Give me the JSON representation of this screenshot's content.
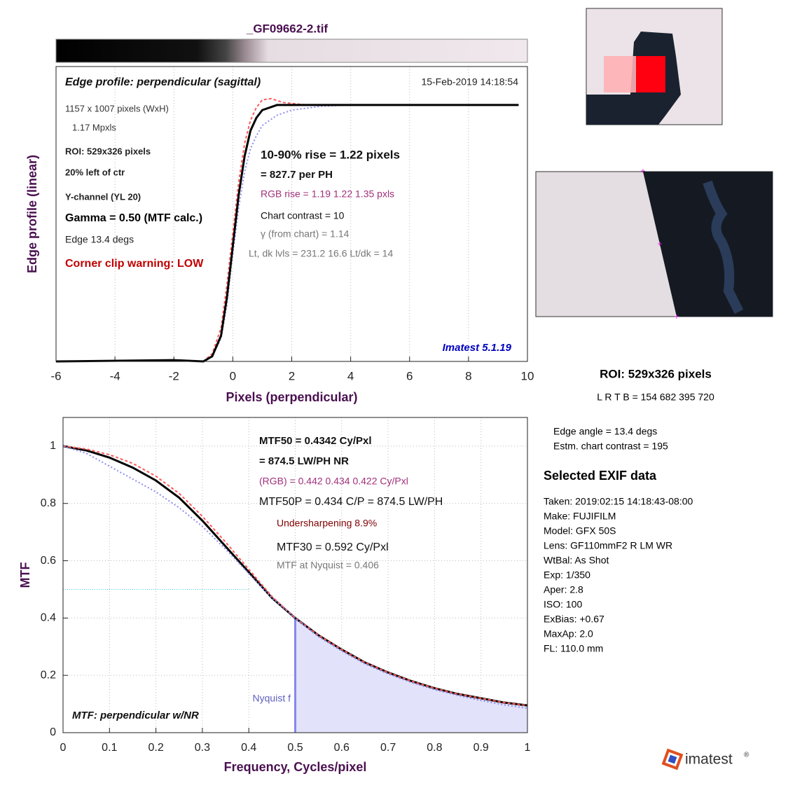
{
  "file_title": "_GF09662-2.tif",
  "chart_data": [
    {
      "type": "line",
      "title": "Edge profile: perpendicular (sagittal)",
      "timestamp": "15-Feb-2019 14:18:54",
      "xlabel": "Pixels (perpendicular)",
      "ylabel": "Edge profile (linear)",
      "xlim": [
        -6,
        10
      ],
      "xticks": [
        -6,
        -4,
        -2,
        0,
        2,
        4,
        6,
        8,
        10
      ],
      "ylim": [
        0,
        1.15
      ],
      "grid": true,
      "annotations": [
        "1157 x 1007 pixels (WxH)",
        "1.17 Mpxls",
        "ROI:  529x326 pixels",
        "20% left of ctr",
        "Y-channel  (YL 20)",
        "Gamma = 0.50 (MTF calc.)",
        "Edge   13.4 degs",
        "Corner clip warning: LOW",
        "10-90% rise = 1.22 pixels",
        "=  827.7 per PH",
        "RGB rise =   1.19    1.22    1.35 pxls",
        "Chart contrast = 10",
        "γ (from chart) =  1.14",
        "Lt, dk lvls = 231.2  16.6  Lt/dk = 14",
        "Imatest 5.1.19"
      ],
      "series": [
        {
          "color": "#ff5a5a",
          "style": "dashed",
          "x": [
            -6,
            -2,
            -1,
            -0.7,
            -0.4,
            -0.2,
            0,
            0.2,
            0.4,
            0.6,
            0.8,
            1.0,
            1.3,
            1.7,
            2.5,
            4,
            9.7
          ],
          "values": [
            0,
            0.005,
            0,
            0.03,
            0.13,
            0.3,
            0.5,
            0.7,
            0.85,
            0.94,
            0.99,
            1.02,
            1.025,
            1.01,
            1.0,
            1.0,
            1.0
          ]
        },
        {
          "color": "#8c8cf0",
          "style": "dotted",
          "x": [
            -6,
            -2,
            -1,
            -0.7,
            -0.4,
            -0.2,
            0,
            0.2,
            0.4,
            0.6,
            0.8,
            1.0,
            1.5,
            2.0,
            3.0,
            4,
            9.7
          ],
          "values": [
            0,
            0.005,
            0,
            0.02,
            0.09,
            0.22,
            0.42,
            0.6,
            0.74,
            0.83,
            0.88,
            0.92,
            0.96,
            0.98,
            0.995,
            1.0,
            1.0
          ]
        },
        {
          "color": "#000000",
          "style": "solid",
          "x": [
            -6,
            -2,
            -1,
            -0.7,
            -0.4,
            -0.2,
            0,
            0.2,
            0.4,
            0.6,
            0.8,
            1.0,
            1.5,
            2,
            4,
            9.7
          ],
          "values": [
            0,
            0.005,
            0,
            0.02,
            0.1,
            0.25,
            0.45,
            0.65,
            0.8,
            0.9,
            0.95,
            0.98,
            1.0,
            1.0,
            1.0,
            1.0
          ]
        }
      ]
    },
    {
      "type": "line",
      "xlabel": "Frequency, Cycles/pixel",
      "ylabel": "MTF",
      "xlim": [
        0,
        1
      ],
      "xticks": [
        0,
        0.1,
        0.2,
        0.3,
        0.4,
        0.5,
        0.6,
        0.7,
        0.8,
        0.9,
        1
      ],
      "ylim": [
        0,
        1.1
      ],
      "yticks": [
        0,
        0.2,
        0.4,
        0.6,
        0.8,
        1
      ],
      "grid": true,
      "nyquist": 0.5,
      "reference_level": 0.5,
      "annotations": [
        "MTF50 = 0.4342 Cy/Pxl",
        "= 874.5 LW/PH  NR",
        "(RGB) = 0.442  0.434  0.422 Cy/Pxl",
        "MTF50P = 0.434 C/P = 874.5 LW/PH",
        "Undersharpening  8.9%",
        "MTF30 = 0.592 Cy/Pxl",
        "MTF at Nyquist = 0.406",
        "Nyquist f",
        "MTF: perpendicular w/NR"
      ],
      "series": [
        {
          "color": "#000000",
          "style": "solid",
          "x": [
            0,
            0.05,
            0.1,
            0.15,
            0.2,
            0.25,
            0.3,
            0.35,
            0.4,
            0.45,
            0.5,
            0.55,
            0.6,
            0.65,
            0.7,
            0.75,
            0.8,
            0.85,
            0.9,
            0.95,
            1
          ],
          "values": [
            1.0,
            0.985,
            0.96,
            0.925,
            0.88,
            0.82,
            0.74,
            0.65,
            0.56,
            0.47,
            0.4,
            0.34,
            0.29,
            0.245,
            0.21,
            0.18,
            0.155,
            0.135,
            0.12,
            0.105,
            0.095
          ]
        },
        {
          "color": "#ff5a5a",
          "style": "dashed",
          "x": [
            0,
            0.05,
            0.1,
            0.15,
            0.2,
            0.25,
            0.3,
            0.35,
            0.4,
            0.45,
            0.5,
            0.55,
            0.6,
            0.65,
            0.7,
            0.75,
            0.8,
            0.85,
            0.9,
            0.95,
            1
          ],
          "values": [
            1.0,
            0.99,
            0.97,
            0.94,
            0.895,
            0.835,
            0.755,
            0.665,
            0.57,
            0.475,
            0.4,
            0.34,
            0.29,
            0.245,
            0.21,
            0.18,
            0.155,
            0.135,
            0.12,
            0.105,
            0.095
          ]
        },
        {
          "color": "#8c8cf0",
          "style": "dotted",
          "x": [
            0,
            0.05,
            0.1,
            0.15,
            0.2,
            0.25,
            0.3,
            0.35,
            0.4,
            0.45,
            0.5,
            0.55,
            0.6,
            0.65,
            0.7,
            0.75,
            0.8,
            0.85,
            0.9,
            0.95,
            1
          ],
          "values": [
            1.0,
            0.975,
            0.93,
            0.885,
            0.84,
            0.785,
            0.72,
            0.64,
            0.555,
            0.47,
            0.4,
            0.335,
            0.285,
            0.24,
            0.205,
            0.175,
            0.15,
            0.13,
            0.112,
            0.097,
            0.085
          ]
        }
      ]
    }
  ],
  "roi_panel": {
    "roi": "ROI:  529x326 pixels",
    "bounds": "L R  T B = 154 682  395 720",
    "edge_angle": "Edge angle = 13.4 degs",
    "contrast": "Estm. chart contrast = 195"
  },
  "exif": {
    "heading": "Selected EXIF data",
    "lines": [
      "Taken: 2019:02:15 14:18:43-08:00",
      "Make:  FUJIFILM",
      "Model:  GFX 50S",
      "Lens:   GF110mmF2 R LM WR",
      "WtBal: As Shot",
      "Exp:    1/350",
      "Aper:   2.8",
      "ISO:    100",
      "ExBias: +0.67",
      "MaxAp: 2.0",
      "FL:     110.0 mm"
    ]
  },
  "logo": "imatest"
}
